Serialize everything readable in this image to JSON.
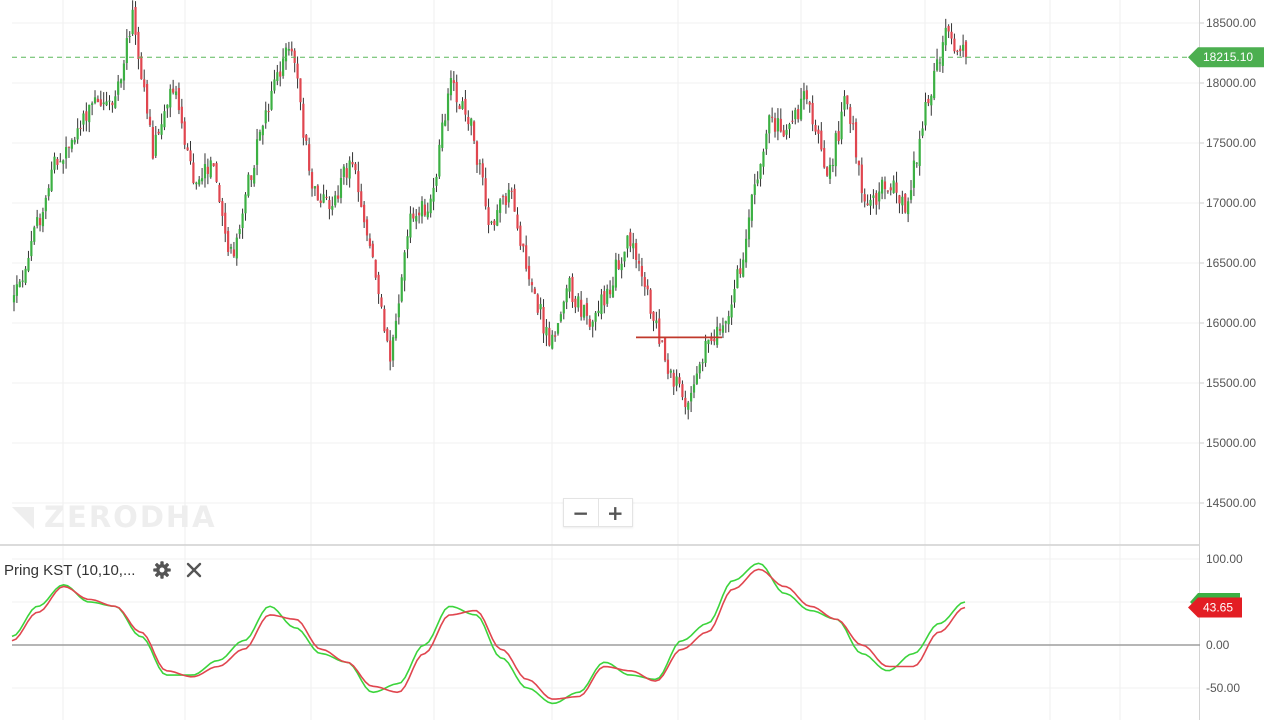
{
  "chart_data": [
    {
      "type": "candlestick",
      "title": "",
      "xlabel": "",
      "ylabel": "",
      "ylim": [
        14250,
        18700
      ],
      "y_ticks": [
        "18500.00",
        "18000.00",
        "17500.00",
        "17000.00",
        "16500.00",
        "16000.00",
        "15500.00",
        "15000.00",
        "14500.00"
      ],
      "y_tick_values": [
        18500,
        18000,
        17500,
        17000,
        16500,
        16000,
        15500,
        15000,
        14500
      ],
      "grid": true,
      "last_price": 18215.1,
      "last_price_label": "18215.10",
      "up_color": "#3cb043",
      "down_color": "#e0464f",
      "path": [
        16200,
        16700,
        17300,
        17500,
        17900,
        17800,
        18550,
        17400,
        18000,
        17200,
        17300,
        16500,
        17300,
        17900,
        18350,
        17100,
        17000,
        17350,
        16600,
        15700,
        16900,
        17000,
        18000,
        17700,
        16800,
        17100,
        16400,
        15800,
        16300,
        16000,
        16300,
        16700,
        16200,
        15650,
        15250,
        15900,
        16000,
        16800,
        17700,
        17600,
        17900,
        17200,
        17900,
        16900,
        17200,
        16950,
        17800,
        18400,
        18200
      ],
      "horizontal_line_value": 15880
    },
    {
      "type": "line",
      "title": "",
      "ylim": [
        -65,
        112
      ],
      "y_ticks": [
        "100.00",
        "50.00",
        "0.00",
        "-50.00"
      ],
      "y_tick_values": [
        100,
        50,
        0,
        -50
      ],
      "zero_line": 0,
      "last_value": 43.65,
      "last_value_label": "43.65",
      "series": [
        {
          "color": "#3cd43c",
          "values": [
            10,
            45,
            70,
            50,
            45,
            10,
            -35,
            -35,
            -18,
            5,
            45,
            20,
            -10,
            -20,
            -55,
            -45,
            0,
            45,
            35,
            -15,
            -50,
            -68,
            -55,
            -20,
            -35,
            -40,
            5,
            25,
            75,
            95,
            60,
            40,
            30,
            -10,
            -30,
            -10,
            25,
            50
          ]
        },
        {
          "color": "#e0464f",
          "values": [
            5,
            38,
            68,
            53,
            45,
            15,
            -30,
            -37,
            -25,
            -5,
            35,
            30,
            -5,
            -20,
            -48,
            -55,
            -10,
            35,
            40,
            -5,
            -40,
            -63,
            -60,
            -25,
            -30,
            -42,
            -5,
            15,
            65,
            88,
            68,
            45,
            30,
            0,
            -25,
            -25,
            15,
            43.65
          ]
        }
      ]
    }
  ],
  "watermark": "ZERODHA",
  "indicator": {
    "name": "Pring KST (10,10,...",
    "settings_icon": "gear-icon",
    "close_icon": "close-icon"
  },
  "zoom": {
    "out_label": "−",
    "in_label": "+"
  }
}
